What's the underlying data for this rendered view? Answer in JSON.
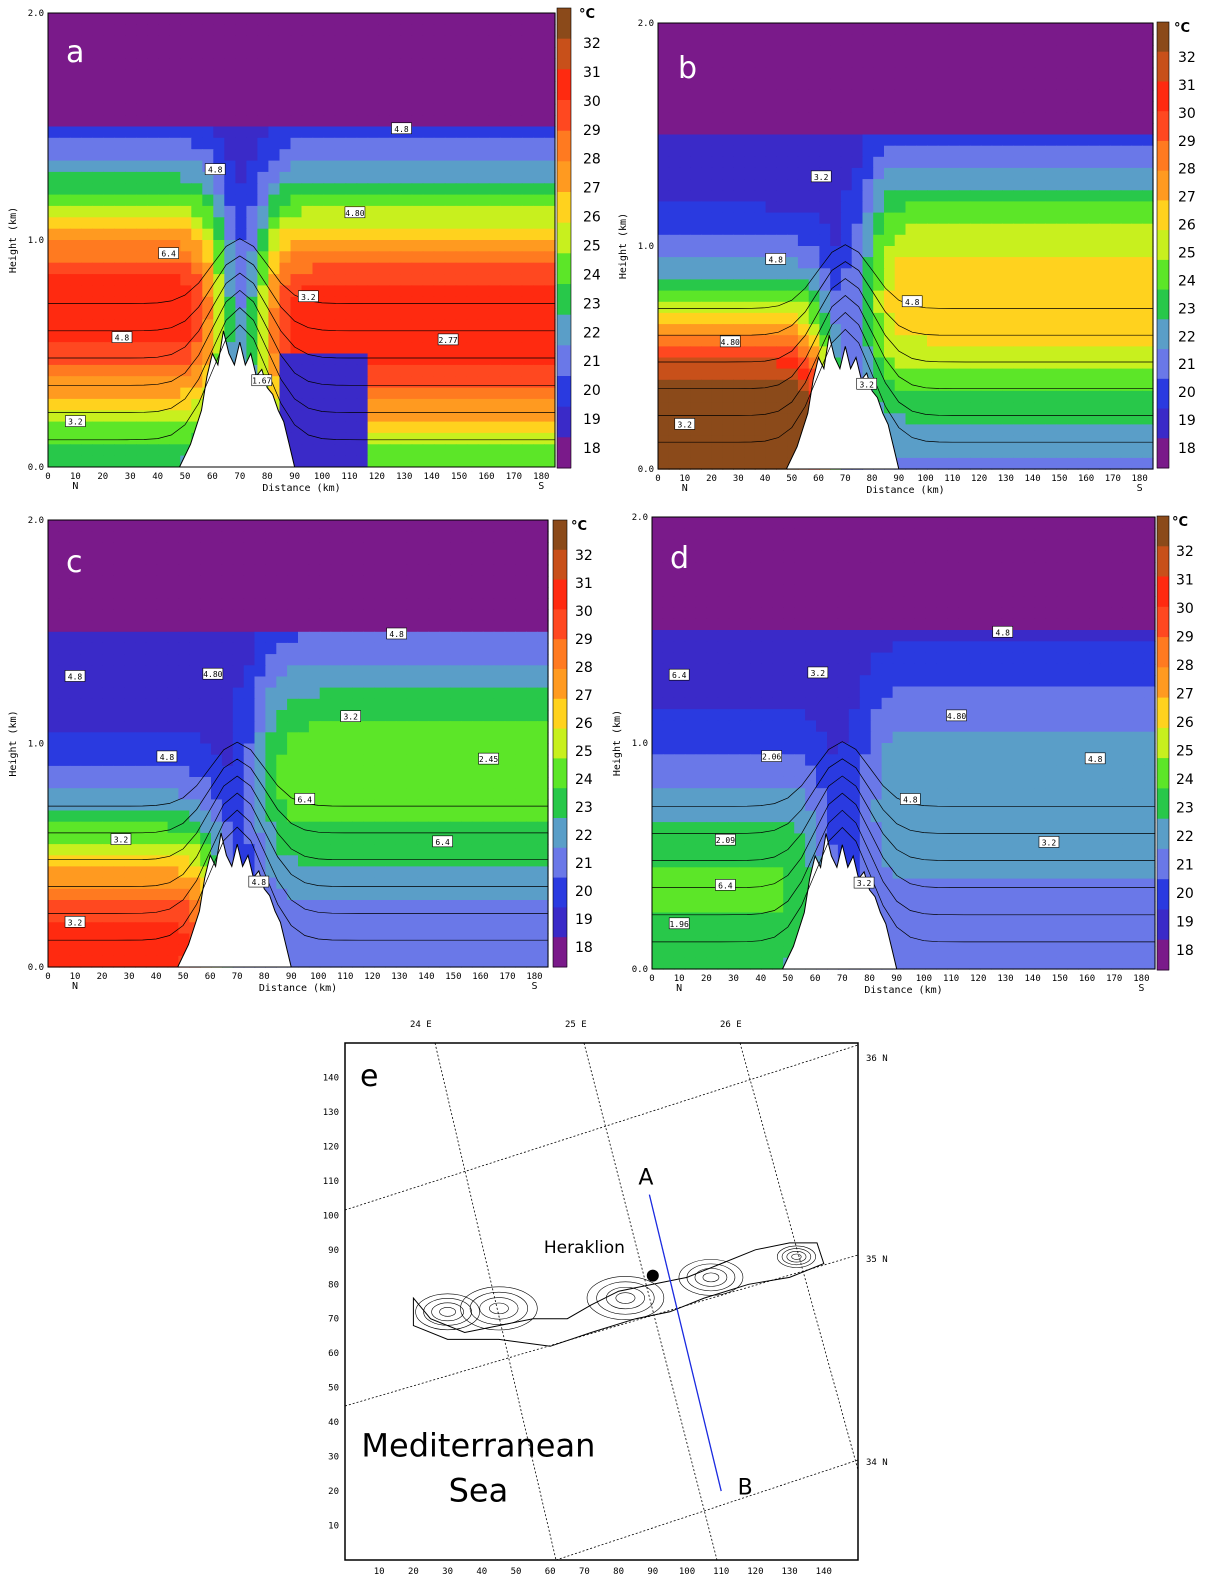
{
  "colorbar": {
    "unit": "°C",
    "levels": [
      "32",
      "31",
      "30",
      "29",
      "28",
      "27",
      "26",
      "25",
      "24",
      "23",
      "22",
      "21",
      "20",
      "19",
      "18"
    ],
    "colors": [
      "#8b4a1a",
      "#c8501a",
      "#ff2a10",
      "#ff4820",
      "#ff7a20",
      "#ff9a20",
      "#ffd21e",
      "#c8f01e",
      "#5ce628",
      "#28c84a",
      "#5a9ec8",
      "#6a78e8",
      "#2a3ae0",
      "#3a2ac8",
      "#7a1a8a"
    ]
  },
  "axes": {
    "ylabel": "Height (km)",
    "xlabel": "Distance (km)",
    "yticks": [
      "0.0",
      "1.0",
      "2.0"
    ],
    "xticks": [
      "0",
      "10",
      "20",
      "30",
      "40",
      "50",
      "60",
      "70",
      "80",
      "90",
      "100",
      "110",
      "120",
      "130",
      "140",
      "150",
      "160",
      "170",
      "180"
    ],
    "left_end": "N",
    "right_end": "S"
  },
  "chart_data": [
    {
      "type": "heatmap",
      "panel": "a",
      "xlabel": "Distance (km)",
      "ylabel": "Height (km)",
      "xlim": [
        0,
        185
      ],
      "ylim": [
        0,
        2.0
      ],
      "contour_labels": [
        "3.2",
        "4.8",
        "6.4",
        "4.8",
        "1.67",
        "3.2",
        "4.80",
        "4.8",
        "2.77"
      ]
    },
    {
      "type": "heatmap",
      "panel": "b",
      "xlabel": "Distance (km)",
      "ylabel": "Height (km)",
      "xlim": [
        0,
        185
      ],
      "ylim": [
        0,
        2.0
      ],
      "contour_labels": [
        "3.2",
        "4.80",
        "4.8",
        "3.2",
        "3.2",
        "4.8"
      ]
    },
    {
      "type": "heatmap",
      "panel": "c",
      "xlabel": "Distance (km)",
      "ylabel": "Height (km)",
      "xlim": [
        0,
        185
      ],
      "ylim": [
        0,
        2.0
      ],
      "contour_labels": [
        "3.2",
        "3.2",
        "4.8",
        "4.80",
        "4.8",
        "6.4",
        "3.2",
        "4.8",
        "6.4",
        "2.45",
        "4.8"
      ]
    },
    {
      "type": "heatmap",
      "panel": "d",
      "xlabel": "Distance (km)",
      "ylabel": "Height (km)",
      "xlim": [
        0,
        185
      ],
      "ylim": [
        0,
        2.0
      ],
      "contour_labels": [
        "1.96",
        "2.09",
        "2.06",
        "3.2",
        "3.2",
        "4.8",
        "4.80",
        "4.8",
        "3.2",
        "4.8",
        "6.4",
        "6.4"
      ]
    }
  ],
  "map": {
    "panel_letter": "e",
    "lon_labels": [
      "24 E",
      "25 E",
      "26 E"
    ],
    "lat_labels": [
      "36 N",
      "35 N",
      "34 N"
    ],
    "yticks": [
      "140",
      "130",
      "120",
      "110",
      "100",
      "90",
      "80",
      "70",
      "60",
      "50",
      "40",
      "30",
      "20",
      "10"
    ],
    "xticks": [
      "10",
      "20",
      "30",
      "40",
      "50",
      "60",
      "70",
      "80",
      "90",
      "100",
      "110",
      "120",
      "130",
      "140"
    ],
    "city": "Heraklion",
    "point_a": "A",
    "point_b": "B",
    "sea_line1": "Mediterranean",
    "sea_line2": "Sea",
    "line_color": "#1a2ae0"
  }
}
